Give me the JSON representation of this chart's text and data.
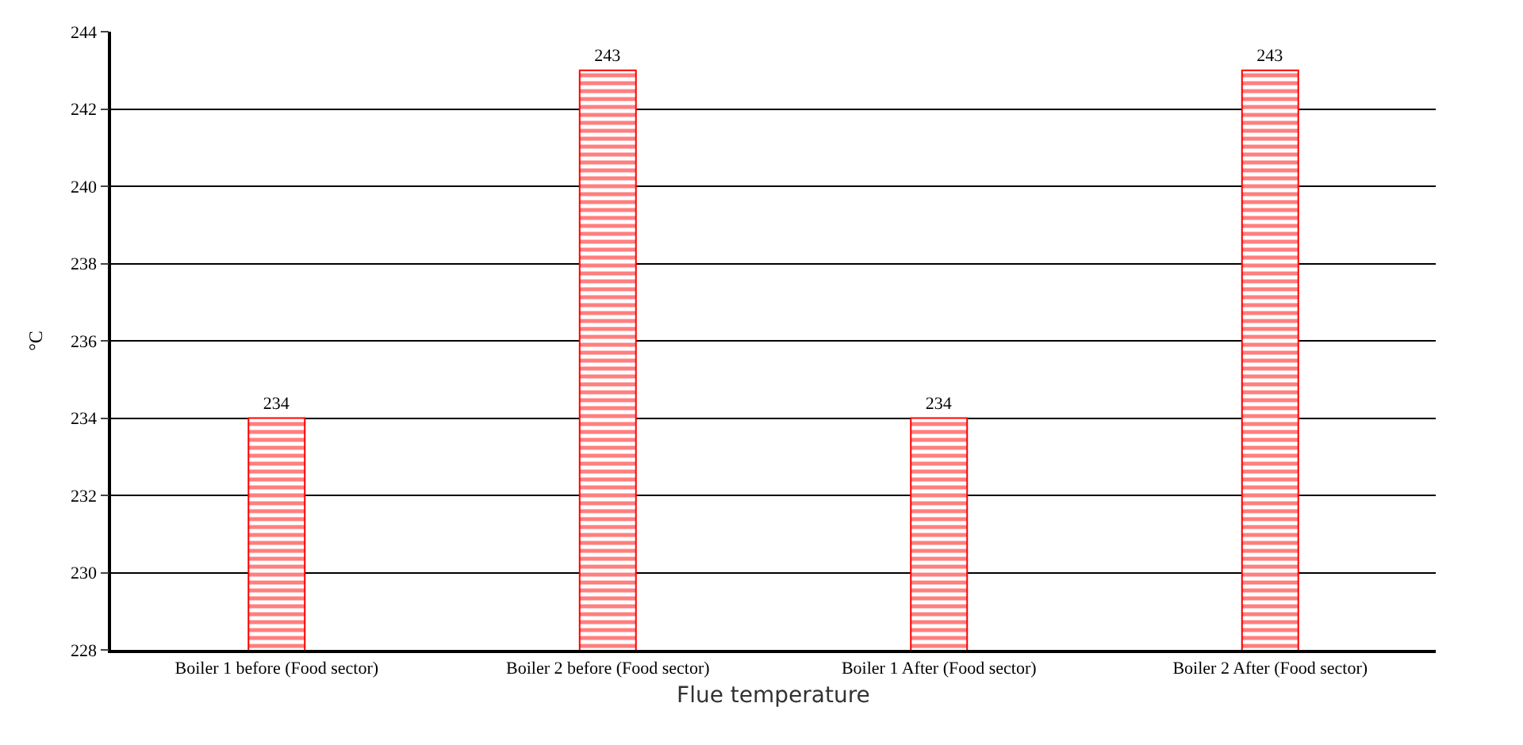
{
  "chart_data": {
    "type": "bar",
    "xlabel": "Flue temperature",
    "ylabel": "°C",
    "categories": [
      "Boiler 1 before (Food sector)",
      "Boiler 2 before (Food sector)",
      "Boiler 1 After (Food sector)",
      "Boiler 2 After (Food sector)"
    ],
    "values": [
      234,
      243,
      234,
      243
    ],
    "color": "#ff0000",
    "ylim": [
      228,
      244
    ],
    "yticks": [
      228,
      230,
      232,
      234,
      236,
      238,
      240,
      242,
      244
    ],
    "grid": "y",
    "data_labels": true
  }
}
